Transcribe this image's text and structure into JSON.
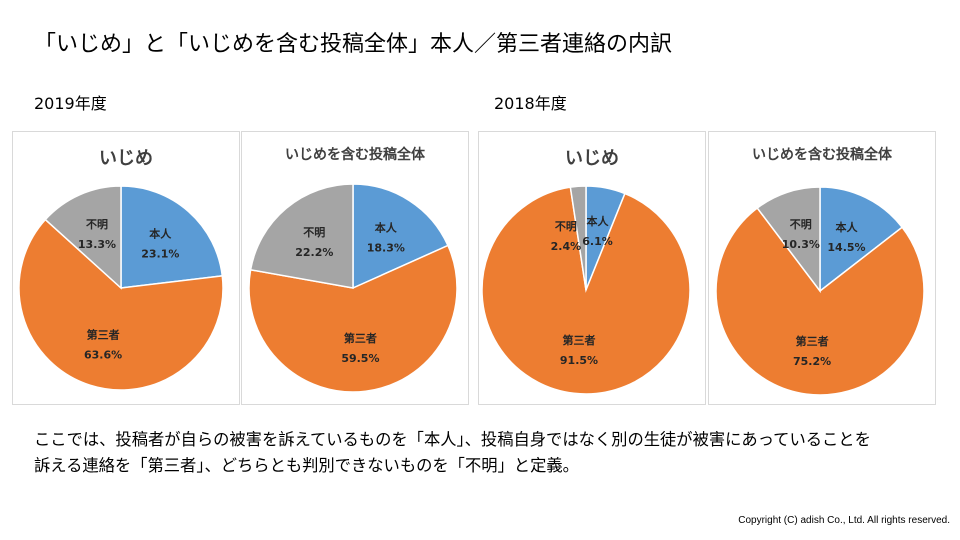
{
  "page": {
    "title": "「いじめ」と「いじめを含む投稿全体」本人／第三者連絡の内訳",
    "year_2019": "2019年度",
    "year_2018": "2018年度",
    "description_line1": "ここでは、投稿者が自らの被害を訴えているものを「本人」、投稿自身ではなく別の生徒が被害にあっていることを",
    "description_line2": "訴える連絡を「第三者」、どちらとも判別できないものを「不明」と定義。",
    "copyright": "Copyright (C) adish Co., Ltd. All rights reserved."
  },
  "colors": {
    "self": "#5b9bd5",
    "third_party": "#ed7d31",
    "unknown": "#a5a5a5"
  },
  "chart_data": [
    {
      "type": "pie",
      "year": "2019年度",
      "title": "いじめ",
      "slices": [
        {
          "name": "本人",
          "value": 23.1,
          "label": "23.1%"
        },
        {
          "name": "第三者",
          "value": 63.6,
          "label": "63.6%"
        },
        {
          "name": "不明",
          "value": 13.3,
          "label": "13.3%"
        }
      ]
    },
    {
      "type": "pie",
      "year": "2019年度",
      "title": "いじめを含む投稿全体",
      "slices": [
        {
          "name": "本人",
          "value": 18.3,
          "label": "18.3%"
        },
        {
          "name": "第三者",
          "value": 59.5,
          "label": "59.5%"
        },
        {
          "name": "不明",
          "value": 22.2,
          "label": "22.2%"
        }
      ]
    },
    {
      "type": "pie",
      "year": "2018年度",
      "title": "いじめ",
      "slices": [
        {
          "name": "本人",
          "value": 6.1,
          "label": "6.1%"
        },
        {
          "name": "第三者",
          "value": 91.5,
          "label": "91.5%"
        },
        {
          "name": "不明",
          "value": 2.4,
          "label": "2.4%"
        }
      ]
    },
    {
      "type": "pie",
      "year": "2018年度",
      "title": "いじめを含む投稿全体",
      "slices": [
        {
          "name": "本人",
          "value": 14.5,
          "label": "14.5%"
        },
        {
          "name": "第三者",
          "value": 75.2,
          "label": "75.2%"
        },
        {
          "name": "不明",
          "value": 10.3,
          "label": "10.3%"
        }
      ]
    }
  ]
}
